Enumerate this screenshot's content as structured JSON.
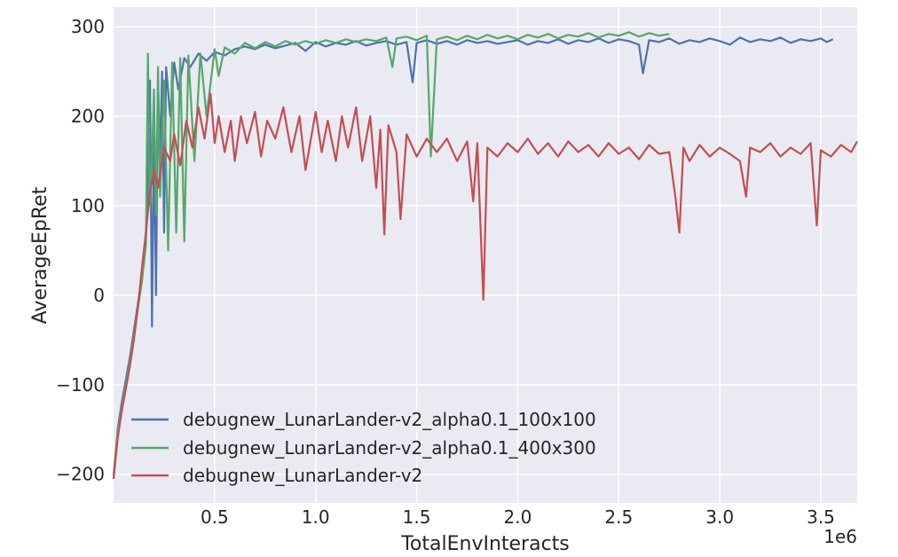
{
  "chart_data": {
    "type": "line",
    "title": "",
    "xlabel": "TotalEnvInteracts",
    "ylabel": "AverageEpRet",
    "x_offset_label": "1e6",
    "xlim": [
      0,
      3.68
    ],
    "ylim": [
      -232,
      322
    ],
    "x_ticks": [
      {
        "value": 0.5,
        "label": "0.5"
      },
      {
        "value": 1.0,
        "label": "1.0"
      },
      {
        "value": 1.5,
        "label": "1.5"
      },
      {
        "value": 2.0,
        "label": "2.0"
      },
      {
        "value": 2.5,
        "label": "2.5"
      },
      {
        "value": 3.0,
        "label": "3.0"
      },
      {
        "value": 3.5,
        "label": "3.5"
      }
    ],
    "y_ticks": [
      {
        "value": 300,
        "label": "300"
      },
      {
        "value": 200,
        "label": "200"
      },
      {
        "value": 100,
        "label": "100"
      },
      {
        "value": 0,
        "label": "0"
      },
      {
        "value": -100,
        "label": "−100"
      },
      {
        "value": -200,
        "label": "−200"
      }
    ],
    "grid": true,
    "legend_position": "lower-left",
    "series": [
      {
        "name": "debugnew_LunarLander-v2_alpha0.1_100x100",
        "color": "#4c72b0",
        "points": [
          [
            0.0,
            -205
          ],
          [
            0.02,
            -150
          ],
          [
            0.04,
            -120
          ],
          [
            0.06,
            -95
          ],
          [
            0.08,
            -70
          ],
          [
            0.1,
            -40
          ],
          [
            0.12,
            -10
          ],
          [
            0.14,
            20
          ],
          [
            0.16,
            60
          ],
          [
            0.17,
            120
          ],
          [
            0.18,
            240
          ],
          [
            0.19,
            -35
          ],
          [
            0.2,
            180
          ],
          [
            0.21,
            0
          ],
          [
            0.22,
            240
          ],
          [
            0.23,
            150
          ],
          [
            0.24,
            250
          ],
          [
            0.25,
            70
          ],
          [
            0.26,
            255
          ],
          [
            0.28,
            200
          ],
          [
            0.3,
            260
          ],
          [
            0.32,
            230
          ],
          [
            0.35,
            265
          ],
          [
            0.38,
            255
          ],
          [
            0.42,
            270
          ],
          [
            0.46,
            262
          ],
          [
            0.5,
            272
          ],
          [
            0.55,
            268
          ],
          [
            0.6,
            275
          ],
          [
            0.65,
            278
          ],
          [
            0.7,
            275
          ],
          [
            0.75,
            280
          ],
          [
            0.8,
            276
          ],
          [
            0.85,
            279
          ],
          [
            0.9,
            282
          ],
          [
            0.95,
            273
          ],
          [
            1.0,
            283
          ],
          [
            1.05,
            278
          ],
          [
            1.1,
            282
          ],
          [
            1.15,
            280
          ],
          [
            1.2,
            284
          ],
          [
            1.25,
            279
          ],
          [
            1.3,
            282
          ],
          [
            1.35,
            284
          ],
          [
            1.4,
            280
          ],
          [
            1.45,
            283
          ],
          [
            1.48,
            238
          ],
          [
            1.5,
            282
          ],
          [
            1.55,
            285
          ],
          [
            1.6,
            281
          ],
          [
            1.65,
            284
          ],
          [
            1.7,
            280
          ],
          [
            1.75,
            285
          ],
          [
            1.8,
            282
          ],
          [
            1.85,
            284
          ],
          [
            1.9,
            281
          ],
          [
            1.95,
            283
          ],
          [
            2.0,
            285
          ],
          [
            2.05,
            280
          ],
          [
            2.1,
            284
          ],
          [
            2.15,
            282
          ],
          [
            2.2,
            286
          ],
          [
            2.25,
            281
          ],
          [
            2.3,
            285
          ],
          [
            2.35,
            283
          ],
          [
            2.4,
            287
          ],
          [
            2.45,
            282
          ],
          [
            2.5,
            286
          ],
          [
            2.55,
            284
          ],
          [
            2.6,
            280
          ],
          [
            2.62,
            248
          ],
          [
            2.65,
            285
          ],
          [
            2.7,
            283
          ],
          [
            2.75,
            287
          ],
          [
            2.8,
            281
          ],
          [
            2.85,
            285
          ],
          [
            2.9,
            283
          ],
          [
            2.95,
            287
          ],
          [
            3.0,
            284
          ],
          [
            3.05,
            280
          ],
          [
            3.1,
            288
          ],
          [
            3.15,
            283
          ],
          [
            3.2,
            286
          ],
          [
            3.25,
            284
          ],
          [
            3.3,
            288
          ],
          [
            3.35,
            282
          ],
          [
            3.4,
            286
          ],
          [
            3.45,
            284
          ],
          [
            3.5,
            287
          ],
          [
            3.53,
            283
          ],
          [
            3.56,
            286
          ]
        ]
      },
      {
        "name": "debugnew_LunarLander-v2_alpha0.1_400x300",
        "color": "#55a868",
        "points": [
          [
            0.0,
            -200
          ],
          [
            0.02,
            -155
          ],
          [
            0.04,
            -125
          ],
          [
            0.06,
            -100
          ],
          [
            0.08,
            -75
          ],
          [
            0.1,
            -45
          ],
          [
            0.12,
            -15
          ],
          [
            0.14,
            15
          ],
          [
            0.16,
            55
          ],
          [
            0.17,
            270
          ],
          [
            0.18,
            100
          ],
          [
            0.19,
            150
          ],
          [
            0.2,
            230
          ],
          [
            0.21,
            90
          ],
          [
            0.22,
            255
          ],
          [
            0.23,
            110
          ],
          [
            0.25,
            240
          ],
          [
            0.27,
            50
          ],
          [
            0.29,
            260
          ],
          [
            0.31,
            70
          ],
          [
            0.33,
            265
          ],
          [
            0.35,
            60
          ],
          [
            0.37,
            268
          ],
          [
            0.4,
            150
          ],
          [
            0.43,
            270
          ],
          [
            0.46,
            200
          ],
          [
            0.5,
            275
          ],
          [
            0.52,
            245
          ],
          [
            0.55,
            277
          ],
          [
            0.6,
            270
          ],
          [
            0.65,
            282
          ],
          [
            0.7,
            276
          ],
          [
            0.75,
            283
          ],
          [
            0.8,
            278
          ],
          [
            0.85,
            284
          ],
          [
            0.9,
            280
          ],
          [
            0.95,
            284
          ],
          [
            1.0,
            281
          ],
          [
            1.05,
            285
          ],
          [
            1.1,
            282
          ],
          [
            1.15,
            286
          ],
          [
            1.2,
            283
          ],
          [
            1.25,
            286
          ],
          [
            1.3,
            284
          ],
          [
            1.35,
            288
          ],
          [
            1.38,
            255
          ],
          [
            1.4,
            287
          ],
          [
            1.45,
            289
          ],
          [
            1.5,
            285
          ],
          [
            1.55,
            290
          ],
          [
            1.57,
            155
          ],
          [
            1.6,
            286
          ],
          [
            1.65,
            289
          ],
          [
            1.7,
            285
          ],
          [
            1.75,
            290
          ],
          [
            1.8,
            286
          ],
          [
            1.85,
            291
          ],
          [
            1.9,
            287
          ],
          [
            1.95,
            290
          ],
          [
            2.0,
            286
          ],
          [
            2.05,
            291
          ],
          [
            2.1,
            288
          ],
          [
            2.15,
            292
          ],
          [
            2.2,
            287
          ],
          [
            2.25,
            291
          ],
          [
            2.3,
            289
          ],
          [
            2.35,
            293
          ],
          [
            2.4,
            288
          ],
          [
            2.45,
            292
          ],
          [
            2.5,
            290
          ],
          [
            2.55,
            294
          ],
          [
            2.6,
            289
          ],
          [
            2.65,
            293
          ],
          [
            2.7,
            290
          ],
          [
            2.75,
            292
          ]
        ]
      },
      {
        "name": "debugnew_LunarLander-v2",
        "color": "#c44e52",
        "points": [
          [
            0.0,
            -205
          ],
          [
            0.02,
            -160
          ],
          [
            0.04,
            -130
          ],
          [
            0.06,
            -105
          ],
          [
            0.08,
            -80
          ],
          [
            0.1,
            -50
          ],
          [
            0.12,
            -15
          ],
          [
            0.14,
            30
          ],
          [
            0.16,
            70
          ],
          [
            0.18,
            115
          ],
          [
            0.2,
            140
          ],
          [
            0.22,
            120
          ],
          [
            0.25,
            165
          ],
          [
            0.28,
            150
          ],
          [
            0.3,
            180
          ],
          [
            0.33,
            145
          ],
          [
            0.36,
            195
          ],
          [
            0.39,
            165
          ],
          [
            0.42,
            210
          ],
          [
            0.45,
            175
          ],
          [
            0.48,
            225
          ],
          [
            0.5,
            170
          ],
          [
            0.52,
            200
          ],
          [
            0.55,
            160
          ],
          [
            0.58,
            195
          ],
          [
            0.6,
            150
          ],
          [
            0.63,
            200
          ],
          [
            0.66,
            170
          ],
          [
            0.7,
            205
          ],
          [
            0.73,
            155
          ],
          [
            0.76,
            195
          ],
          [
            0.8,
            175
          ],
          [
            0.84,
            210
          ],
          [
            0.88,
            160
          ],
          [
            0.92,
            200
          ],
          [
            0.95,
            140
          ],
          [
            1.0,
            205
          ],
          [
            1.03,
            160
          ],
          [
            1.06,
            195
          ],
          [
            1.1,
            150
          ],
          [
            1.13,
            200
          ],
          [
            1.16,
            165
          ],
          [
            1.2,
            210
          ],
          [
            1.23,
            150
          ],
          [
            1.27,
            200
          ],
          [
            1.3,
            120
          ],
          [
            1.32,
            185
          ],
          [
            1.34,
            68
          ],
          [
            1.36,
            190
          ],
          [
            1.4,
            160
          ],
          [
            1.42,
            85
          ],
          [
            1.45,
            180
          ],
          [
            1.5,
            155
          ],
          [
            1.55,
            175
          ],
          [
            1.6,
            160
          ],
          [
            1.65,
            175
          ],
          [
            1.7,
            150
          ],
          [
            1.75,
            172
          ],
          [
            1.78,
            105
          ],
          [
            1.8,
            170
          ],
          [
            1.83,
            -5
          ],
          [
            1.85,
            165
          ],
          [
            1.9,
            155
          ],
          [
            1.95,
            170
          ],
          [
            2.0,
            160
          ],
          [
            2.05,
            175
          ],
          [
            2.1,
            158
          ],
          [
            2.15,
            170
          ],
          [
            2.2,
            155
          ],
          [
            2.25,
            172
          ],
          [
            2.3,
            160
          ],
          [
            2.35,
            168
          ],
          [
            2.4,
            155
          ],
          [
            2.45,
            170
          ],
          [
            2.5,
            158
          ],
          [
            2.55,
            165
          ],
          [
            2.6,
            152
          ],
          [
            2.65,
            168
          ],
          [
            2.7,
            158
          ],
          [
            2.75,
            160
          ],
          [
            2.78,
            110
          ],
          [
            2.8,
            70
          ],
          [
            2.82,
            165
          ],
          [
            2.85,
            150
          ],
          [
            2.9,
            168
          ],
          [
            2.95,
            155
          ],
          [
            3.0,
            165
          ],
          [
            3.05,
            158
          ],
          [
            3.1,
            150
          ],
          [
            3.13,
            110
          ],
          [
            3.15,
            165
          ],
          [
            3.2,
            160
          ],
          [
            3.25,
            170
          ],
          [
            3.3,
            155
          ],
          [
            3.35,
            165
          ],
          [
            3.4,
            158
          ],
          [
            3.45,
            170
          ],
          [
            3.48,
            78
          ],
          [
            3.5,
            162
          ],
          [
            3.55,
            155
          ],
          [
            3.6,
            168
          ],
          [
            3.65,
            160
          ],
          [
            3.68,
            172
          ]
        ]
      }
    ]
  }
}
